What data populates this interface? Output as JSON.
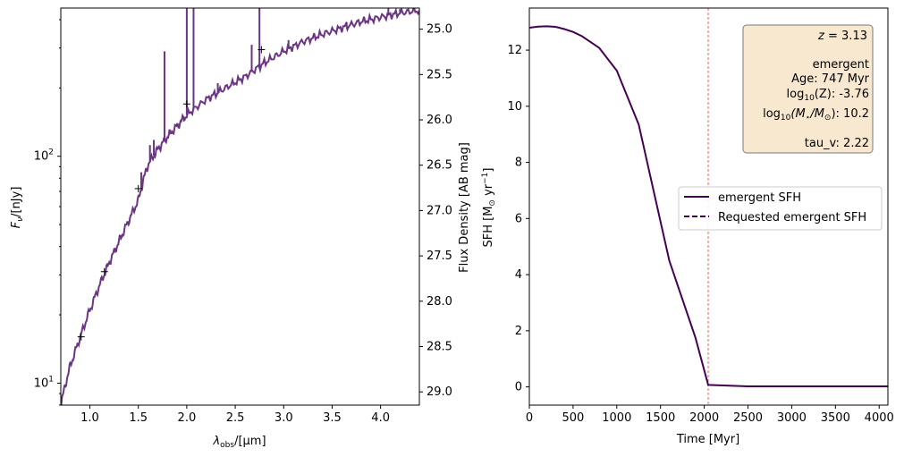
{
  "colors": {
    "spectrum": "#6a3583",
    "sfh": "#440154",
    "vline": "#e0433b",
    "box_fill": "#f7e8cf",
    "box_edge": "#7a7a7a"
  },
  "chart_data": [
    {
      "type": "line",
      "title": "",
      "xlabel": "λobs/[μm]",
      "xlabel_main": "λ",
      "xlabel_sub": "obs",
      "xlabel_tail": "/[μm]",
      "ylabel": "Fν/[nJy]",
      "ylabel_main": "F",
      "ylabel_sub": "ν",
      "ylabel_tail": "/[nJy]",
      "y2label": "Flux Density [AB mag]",
      "xlim": [
        0.7,
        4.4
      ],
      "ylim_log": [
        8.0,
        450
      ],
      "y2lim_mag": [
        29.146,
        24.767
      ],
      "xticks": [
        1.0,
        1.5,
        2.0,
        2.5,
        3.0,
        3.5,
        4.0
      ],
      "xtick_labels": [
        "1.0",
        "1.5",
        "2.0",
        "2.5",
        "3.0",
        "3.5",
        "4.0"
      ],
      "yticks": [
        10,
        100
      ],
      "ytick_base": "10",
      "ytick_exponents": [
        "1",
        "2"
      ],
      "y2ticks": [
        25.0,
        25.5,
        26.0,
        26.5,
        27.0,
        27.5,
        28.0,
        28.5,
        29.0
      ],
      "y2tick_labels": [
        "25.0",
        "25.5",
        "26.0",
        "26.5",
        "27.0",
        "27.5",
        "28.0",
        "28.5",
        "29.0"
      ],
      "continuum": [
        [
          0.7,
          8.0
        ],
        [
          0.75,
          10.0
        ],
        [
          0.8,
          12.0
        ],
        [
          0.9,
          16.0
        ],
        [
          1.0,
          21.0
        ],
        [
          1.1,
          27.0
        ],
        [
          1.2,
          34.0
        ],
        [
          1.3,
          42.0
        ],
        [
          1.4,
          52.0
        ],
        [
          1.5,
          64.0
        ],
        [
          1.55,
          78.0
        ],
        [
          1.6,
          92.0
        ],
        [
          1.7,
          107.0
        ],
        [
          1.8,
          122.0
        ],
        [
          1.9,
          136.0
        ],
        [
          2.0,
          152.0
        ],
        [
          2.2,
          178.0
        ],
        [
          2.4,
          200.0
        ],
        [
          2.6,
          224.0
        ],
        [
          2.8,
          258.0
        ],
        [
          3.0,
          290.0
        ],
        [
          3.2,
          320.0
        ],
        [
          3.4,
          345.0
        ],
        [
          3.6,
          368.0
        ],
        [
          3.8,
          392.0
        ],
        [
          4.0,
          410.0
        ],
        [
          4.2,
          428.0
        ],
        [
          4.4,
          440.0
        ]
      ],
      "emission_lines": [
        {
          "x": 1.32,
          "peak": 45.0
        },
        {
          "x": 1.53,
          "peak": 85.0
        },
        {
          "x": 1.62,
          "peak": 112.0
        },
        {
          "x": 1.66,
          "peak": 118.0
        },
        {
          "x": 1.77,
          "peak": 290.0
        },
        {
          "x": 1.94,
          "peak": 145.0
        },
        {
          "x": 2.0,
          "peak": 450.0
        },
        {
          "x": 2.07,
          "peak": 450.0
        },
        {
          "x": 2.32,
          "peak": 210.0
        },
        {
          "x": 2.67,
          "peak": 310.0
        },
        {
          "x": 2.75,
          "peak": 450.0
        },
        {
          "x": 3.05,
          "peak": 325.0
        },
        {
          "x": 3.65,
          "peak": 390.0
        },
        {
          "x": 4.08,
          "peak": 450.0
        },
        {
          "x": 4.2,
          "peak": 445.0
        }
      ],
      "photometry": [
        [
          0.91,
          16.0
        ],
        [
          1.15,
          31.0
        ],
        [
          1.5,
          72.0
        ],
        [
          2.0,
          170.0
        ],
        [
          2.77,
          295.0
        ]
      ]
    },
    {
      "type": "line",
      "title": "",
      "xlabel": "Time [Myr]",
      "ylabel": "SFH [M⊙ yr⁻¹]",
      "ylabel_main": "SFH [M",
      "ylabel_sun": "⊙",
      "ylabel_mid": " yr",
      "ylabel_exp": "−1",
      "ylabel_end": "]",
      "xlim": [
        0,
        4100
      ],
      "ylim": [
        -0.65,
        13.5
      ],
      "xticks": [
        0,
        500,
        1000,
        1500,
        2000,
        2500,
        3000,
        3500,
        4000
      ],
      "xtick_labels": [
        "0",
        "500",
        "1000",
        "1500",
        "2000",
        "2500",
        "3000",
        "3500",
        "4000"
      ],
      "yticks": [
        0,
        2,
        4,
        6,
        8,
        10,
        12
      ],
      "ytick_labels": [
        "0",
        "2",
        "4",
        "6",
        "8",
        "10",
        "12"
      ],
      "series": [
        {
          "name": "emergent SFH",
          "style": "solid",
          "x": [
            0,
            100,
            200,
            300,
            400,
            500,
            600,
            800,
            1000,
            1250,
            1600,
            1900,
            2045,
            2500,
            3000,
            3500,
            4100
          ],
          "y": [
            12.8,
            12.84,
            12.85,
            12.83,
            12.75,
            12.65,
            12.5,
            12.08,
            11.27,
            9.35,
            4.5,
            1.75,
            0.07,
            0.02,
            0.02,
            0.02,
            0.02
          ]
        },
        {
          "name": "Requested emergent SFH",
          "style": "dashed",
          "x": [],
          "y": []
        }
      ],
      "vline_x": 2045,
      "info_box": {
        "redshift_symbol": "z",
        "redshift_value": "= 3.13",
        "component": "emergent",
        "age": "Age: 747 Myr",
        "metallicity_pre": "log",
        "metallicity_sub": "10",
        "metallicity_post": "(Z): -3.76",
        "mass_pre": "log",
        "mass_sub": "10",
        "mass_mid": "(M",
        "mass_star": "⋆",
        "mass_slash": "/M",
        "mass_sun": "⊙",
        "mass_post": "): 10.2",
        "tau": "tau_v: 2.22"
      },
      "legend_position": "center-right"
    }
  ]
}
